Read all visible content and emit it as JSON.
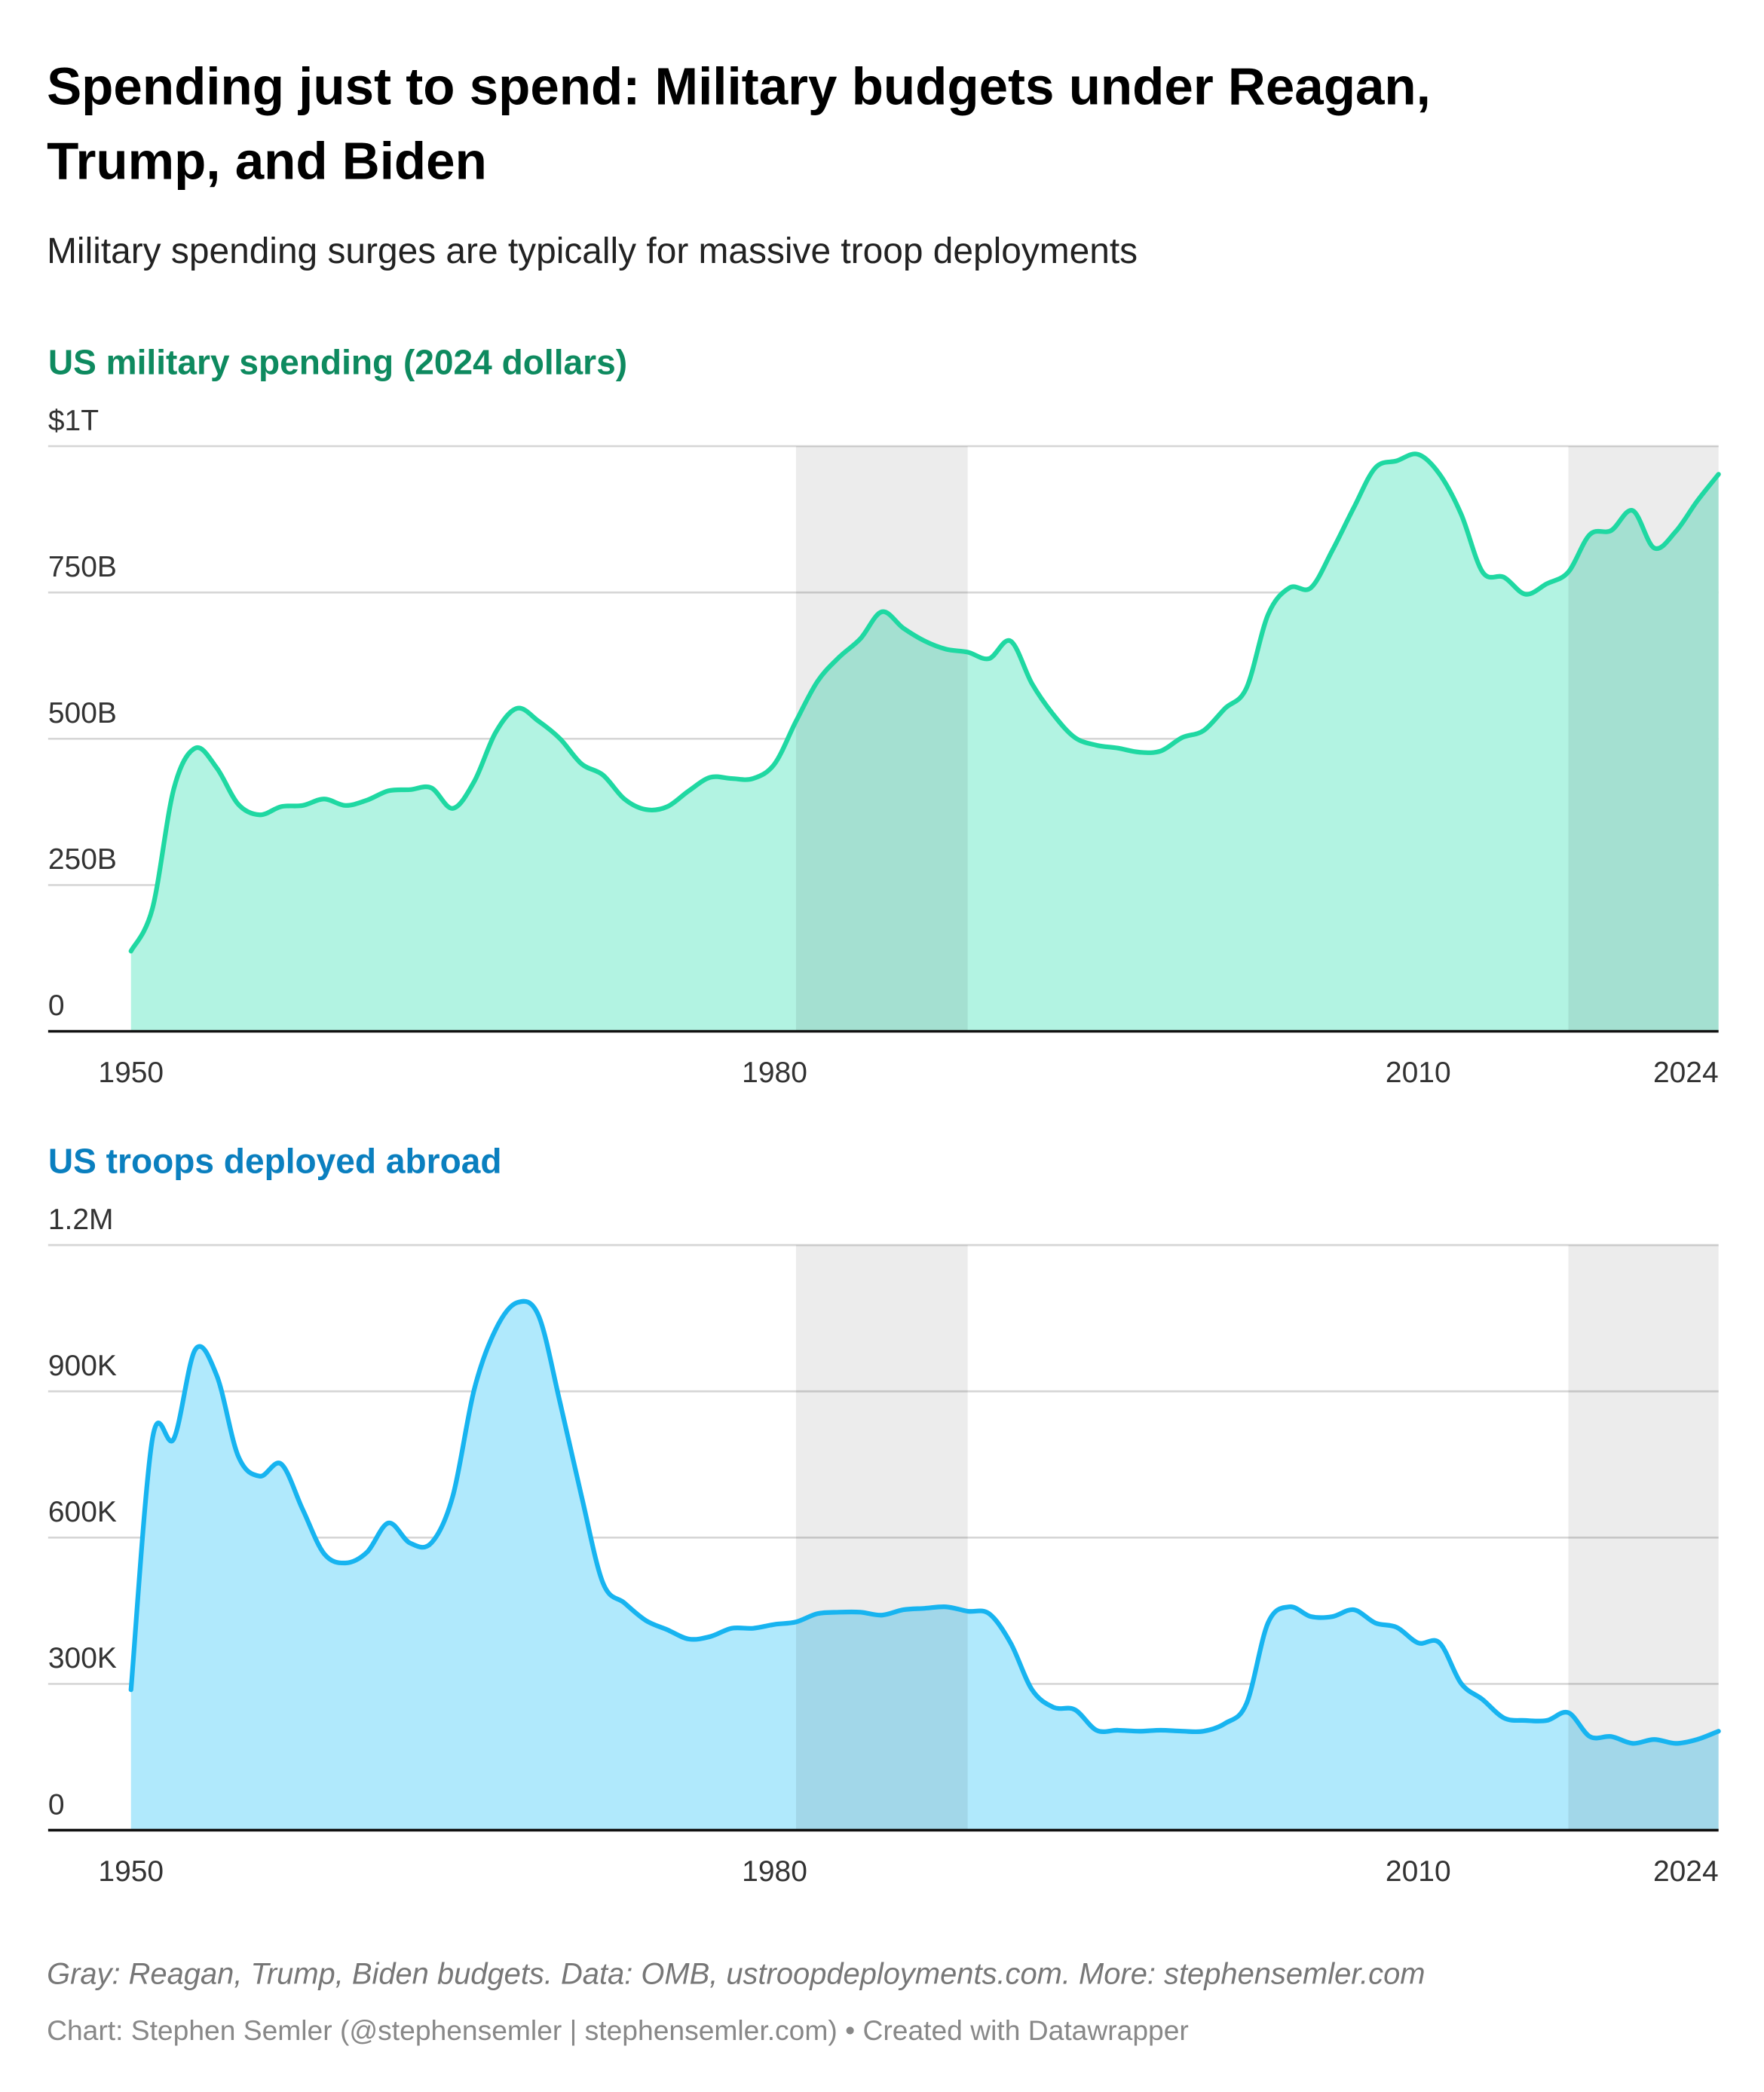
{
  "title": "Spending just to spend: Military budgets under Reagan,",
  "title_line2": "Trump, and Biden",
  "subtitle": "Military spending surges are typically for massive troop deployments",
  "notes": "Gray: Reagan, Trump, Biden budgets. Data: OMB, ustroopdeployments.com. More: stephensemler.com",
  "credit": "Chart: Stephen Semler (@stephensemler | stephensemler.com) • Created with Datawrapper",
  "chart_data": [
    {
      "type": "area",
      "title": "US military spending (2024 dollars)",
      "color": "#1fd8a2",
      "fill": "#b2f3e2",
      "title_color": "#0e8a5f",
      "x": [
        1950,
        1951,
        1952,
        1953,
        1954,
        1955,
        1956,
        1957,
        1958,
        1959,
        1960,
        1961,
        1962,
        1963,
        1964,
        1965,
        1966,
        1967,
        1968,
        1969,
        1970,
        1971,
        1972,
        1973,
        1974,
        1975,
        1976,
        1977,
        1978,
        1979,
        1980,
        1981,
        1982,
        1983,
        1984,
        1985,
        1986,
        1987,
        1988,
        1989,
        1990,
        1991,
        1992,
        1993,
        1994,
        1995,
        1996,
        1997,
        1998,
        1999,
        2000,
        2001,
        2002,
        2003,
        2004,
        2005,
        2006,
        2007,
        2008,
        2009,
        2010,
        2011,
        2012,
        2013,
        2014,
        2015,
        2016,
        2017,
        2018,
        2019,
        2020,
        2021,
        2022,
        2023,
        2024
      ],
      "values": [
        137,
        210,
        415,
        484,
        450,
        388,
        370,
        384,
        386,
        397,
        386,
        395,
        411,
        413,
        416,
        381,
        427,
        511,
        552,
        530,
        500,
        457,
        438,
        397,
        379,
        384,
        411,
        434,
        432,
        432,
        457,
        530,
        598,
        639,
        671,
        717,
        689,
        667,
        653,
        648,
        637,
        667,
        594,
        541,
        502,
        489,
        484,
        477,
        479,
        502,
        514,
        552,
        587,
        712,
        758,
        758,
        822,
        895,
        963,
        975,
        986,
        952,
        884,
        785,
        776,
        747,
        765,
        785,
        849,
        856,
        890,
        826,
        854,
        906,
        952
      ],
      "xlim": [
        1950,
        2024
      ],
      "xticks": [
        1950,
        1980,
        2010,
        2024
      ],
      "ylim": [
        0,
        1000
      ],
      "yticks": [
        0,
        {
          "value": 250,
          "label": "250B"
        },
        {
          "value": 500,
          "label": "500B"
        },
        {
          "value": 750,
          "label": "750B"
        },
        {
          "value": 1000,
          "label": "$1T"
        }
      ],
      "bands": [
        [
          1981,
          1989
        ],
        [
          2017,
          2024
        ]
      ],
      "grid": true
    },
    {
      "type": "area",
      "title": "US troops deployed abroad",
      "color": "#17b4f0",
      "fill": "#b0e9fc",
      "title_color": "#0a7fbf",
      "x": [
        1950,
        1951,
        1952,
        1953,
        1954,
        1955,
        1956,
        1957,
        1958,
        1959,
        1960,
        1961,
        1962,
        1963,
        1964,
        1965,
        1966,
        1967,
        1968,
        1969,
        1970,
        1971,
        1972,
        1973,
        1974,
        1975,
        1976,
        1977,
        1978,
        1979,
        1980,
        1981,
        1982,
        1983,
        1984,
        1985,
        1986,
        1987,
        1988,
        1989,
        1990,
        1991,
        1992,
        1993,
        1994,
        1995,
        1996,
        1997,
        1998,
        1999,
        2000,
        2001,
        2002,
        2003,
        2004,
        2005,
        2006,
        2007,
        2008,
        2009,
        2010,
        2011,
        2012,
        2013,
        2014,
        2015,
        2016,
        2017,
        2018,
        2019,
        2020,
        2021,
        2022,
        2023,
        2024
      ],
      "values": [
        288000,
        803000,
        803000,
        986000,
        932000,
        767000,
        726000,
        751000,
        658000,
        567000,
        548000,
        570000,
        630000,
        589000,
        589000,
        685000,
        904000,
        1027000,
        1082000,
        1055000,
        877000,
        685000,
        507000,
        466000,
        430000,
        411000,
        392000,
        397000,
        414000,
        414000,
        422000,
        427000,
        444000,
        447000,
        447000,
        441000,
        452000,
        455000,
        458000,
        449000,
        444000,
        384000,
        288000,
        252000,
        247000,
        205000,
        205000,
        203000,
        205000,
        203000,
        203000,
        219000,
        260000,
        425000,
        458000,
        438000,
        438000,
        452000,
        425000,
        416000,
        384000,
        384000,
        301000,
        268000,
        230000,
        225000,
        225000,
        241000,
        192000,
        192000,
        178000,
        186000,
        178000,
        186000,
        203000
      ],
      "xlim": [
        1950,
        2024
      ],
      "xticks": [
        1950,
        1980,
        2010,
        2024
      ],
      "ylim": [
        0,
        1200000
      ],
      "yticks": [
        0,
        {
          "value": 300000,
          "label": "300K"
        },
        {
          "value": 600000,
          "label": "600K"
        },
        {
          "value": 900000,
          "label": "900K"
        },
        {
          "value": 1200000,
          "label": "1.2M"
        }
      ],
      "bands": [
        [
          1981,
          1989
        ],
        [
          2017,
          2024
        ]
      ],
      "grid": true
    }
  ]
}
